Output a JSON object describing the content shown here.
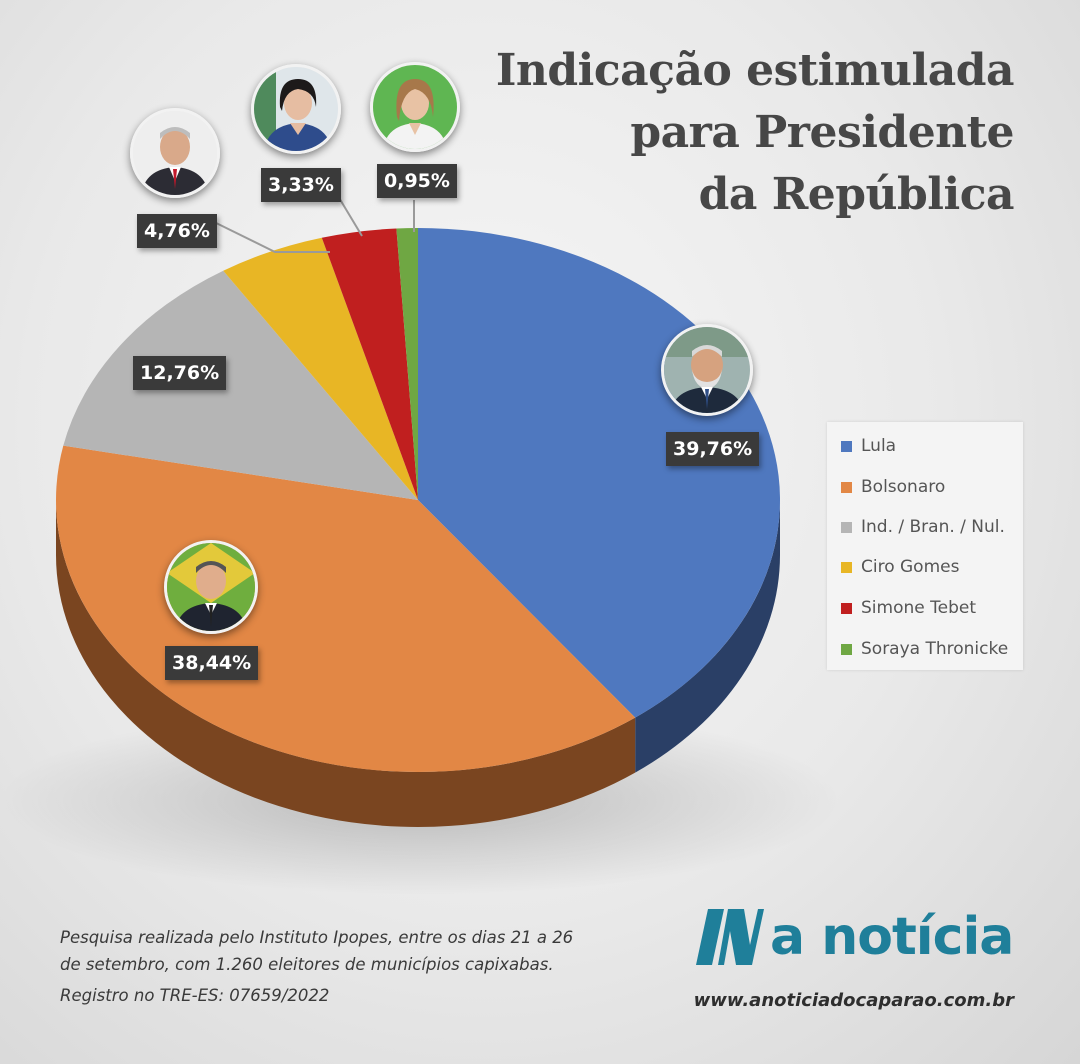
{
  "title_lines": [
    "Indicação estimulada",
    "para Presidente",
    "da República"
  ],
  "chart_data": {
    "type": "pie",
    "title": "Indicação estimulada para Presidente da República",
    "slices": [
      {
        "name": "Lula",
        "value": 39.76,
        "label": "39,76%",
        "color": "#4f78bf",
        "side": "#2a3f66"
      },
      {
        "name": "Bolsonaro",
        "value": 38.44,
        "label": "38,44%",
        "color": "#e28745",
        "side": "#7a4520"
      },
      {
        "name": "Ind. / Bran. / Nul.",
        "value": 12.76,
        "label": "12,76%",
        "color": "#b5b5b5",
        "side": "#6a6a6a"
      },
      {
        "name": "Ciro Gomes",
        "value": 4.76,
        "label": "4,76%",
        "color": "#e8b625",
        "side": "#7f6410"
      },
      {
        "name": "Simone Tebet",
        "value": 3.33,
        "label": "3,33%",
        "color": "#c01f1f",
        "side": "#6a1010"
      },
      {
        "name": "Soraya Thronicke",
        "value": 0.95,
        "label": "0,95%",
        "color": "#6fa743",
        "side": "#3c5c24"
      }
    ],
    "legend_position": "right"
  },
  "legend": {
    "items": [
      {
        "label": "Lula",
        "color": "#4f78bf"
      },
      {
        "label": "Bolsonaro",
        "color": "#e28745"
      },
      {
        "label": "Ind. / Bran. / Nul.",
        "color": "#b5b5b5"
      },
      {
        "label": "Ciro Gomes",
        "color": "#e8b625"
      },
      {
        "label": "Simone Tebet",
        "color": "#c01f1f"
      },
      {
        "label": "Soraya Thronicke",
        "color": "#6fa743"
      }
    ]
  },
  "footnote": {
    "line1": "Pesquisa realizada pelo Instituto Ipopes, entre os dias 21 a 26",
    "line2": "de setembro, com 1.260 eleitores de municípios capixabas.",
    "registro": "Registro no TRE-ES: 07659/2022"
  },
  "brand": {
    "name": "a notícia",
    "color": "#1f7f9a",
    "website": "www.anoticiadocaparao.com.br"
  }
}
